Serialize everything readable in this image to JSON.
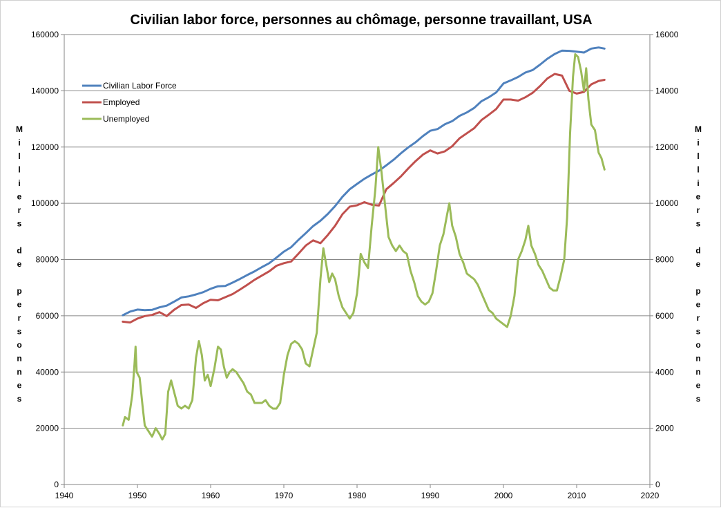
{
  "chart_data": {
    "type": "line",
    "title": "Civilian labor force, personnes au chômage, personne travaillant, USA",
    "ylabel_left": "Milliers de personnes",
    "ylabel_right": "Milliers de personnes",
    "xlim": [
      1940,
      2020
    ],
    "x_ticks": [
      1940,
      1950,
      1960,
      1970,
      1980,
      1990,
      2000,
      2010,
      2020
    ],
    "ylim_left": [
      0,
      160000
    ],
    "y_ticks_left": [
      0,
      20000,
      40000,
      60000,
      80000,
      100000,
      120000,
      140000,
      160000
    ],
    "ylim_right": [
      0,
      16000
    ],
    "y_ticks_right": [
      0,
      2000,
      4000,
      6000,
      8000,
      10000,
      12000,
      14000,
      16000
    ],
    "grid": "horizontal",
    "legend_position": "top-left",
    "series": [
      {
        "name": "Civilian Labor Force",
        "axis": "left",
        "color": "#4f81bd",
        "points": [
          [
            1948.0,
            60200
          ],
          [
            1949.0,
            61500
          ],
          [
            1950.0,
            62200
          ],
          [
            1951.0,
            62000
          ],
          [
            1952.0,
            62100
          ],
          [
            1953.0,
            63000
          ],
          [
            1954.0,
            63600
          ],
          [
            1955.0,
            65000
          ],
          [
            1956.0,
            66500
          ],
          [
            1957.0,
            66900
          ],
          [
            1958.0,
            67600
          ],
          [
            1959.0,
            68400
          ],
          [
            1960.0,
            69600
          ],
          [
            1961.0,
            70500
          ],
          [
            1962.0,
            70600
          ],
          [
            1963.0,
            71800
          ],
          [
            1964.0,
            73100
          ],
          [
            1965.0,
            74500
          ],
          [
            1966.0,
            75800
          ],
          [
            1967.0,
            77300
          ],
          [
            1968.0,
            78700
          ],
          [
            1969.0,
            80700
          ],
          [
            1970.0,
            82800
          ],
          [
            1971.0,
            84400
          ],
          [
            1972.0,
            87000
          ],
          [
            1973.0,
            89400
          ],
          [
            1974.0,
            91900
          ],
          [
            1975.0,
            93800
          ],
          [
            1976.0,
            96200
          ],
          [
            1977.0,
            99000
          ],
          [
            1978.0,
            102300
          ],
          [
            1979.0,
            105000
          ],
          [
            1980.0,
            106900
          ],
          [
            1981.0,
            108700
          ],
          [
            1982.0,
            110200
          ],
          [
            1983.0,
            111600
          ],
          [
            1984.0,
            113500
          ],
          [
            1985.0,
            115500
          ],
          [
            1986.0,
            117800
          ],
          [
            1987.0,
            119900
          ],
          [
            1988.0,
            121700
          ],
          [
            1989.0,
            123900
          ],
          [
            1990.0,
            125800
          ],
          [
            1991.0,
            126400
          ],
          [
            1992.0,
            128100
          ],
          [
            1993.0,
            129200
          ],
          [
            1994.0,
            131100
          ],
          [
            1995.0,
            132300
          ],
          [
            1996.0,
            133900
          ],
          [
            1997.0,
            136300
          ],
          [
            1998.0,
            137700
          ],
          [
            1999.0,
            139400
          ],
          [
            2000.0,
            142600
          ],
          [
            2001.0,
            143700
          ],
          [
            2002.0,
            144900
          ],
          [
            2003.0,
            146500
          ],
          [
            2004.0,
            147400
          ],
          [
            2005.0,
            149300
          ],
          [
            2006.0,
            151400
          ],
          [
            2007.0,
            153100
          ],
          [
            2008.0,
            154300
          ],
          [
            2009.0,
            154200
          ],
          [
            2010.0,
            153900
          ],
          [
            2011.0,
            153600
          ],
          [
            2012.0,
            155000
          ],
          [
            2013.0,
            155400
          ],
          [
            2013.8,
            155000
          ]
        ]
      },
      {
        "name": "Employed",
        "axis": "left",
        "color": "#c0504d",
        "points": [
          [
            1948.0,
            57900
          ],
          [
            1949.0,
            57600
          ],
          [
            1950.0,
            59000
          ],
          [
            1951.0,
            59900
          ],
          [
            1952.0,
            60300
          ],
          [
            1953.0,
            61300
          ],
          [
            1954.0,
            59900
          ],
          [
            1955.0,
            62100
          ],
          [
            1956.0,
            63800
          ],
          [
            1957.0,
            64000
          ],
          [
            1958.0,
            62800
          ],
          [
            1959.0,
            64500
          ],
          [
            1960.0,
            65700
          ],
          [
            1961.0,
            65500
          ],
          [
            1962.0,
            66600
          ],
          [
            1963.0,
            67700
          ],
          [
            1964.0,
            69300
          ],
          [
            1965.0,
            71000
          ],
          [
            1966.0,
            72800
          ],
          [
            1967.0,
            74300
          ],
          [
            1968.0,
            75800
          ],
          [
            1969.0,
            77800
          ],
          [
            1970.0,
            78700
          ],
          [
            1971.0,
            79300
          ],
          [
            1972.0,
            82100
          ],
          [
            1973.0,
            85000
          ],
          [
            1974.0,
            86800
          ],
          [
            1975.0,
            85800
          ],
          [
            1976.0,
            88700
          ],
          [
            1977.0,
            92000
          ],
          [
            1978.0,
            96100
          ],
          [
            1979.0,
            98800
          ],
          [
            1980.0,
            99300
          ],
          [
            1981.0,
            100400
          ],
          [
            1982.0,
            99500
          ],
          [
            1983.0,
            99200
          ],
          [
            1984.0,
            105000
          ],
          [
            1985.0,
            107200
          ],
          [
            1986.0,
            109600
          ],
          [
            1987.0,
            112400
          ],
          [
            1988.0,
            115000
          ],
          [
            1989.0,
            117300
          ],
          [
            1990.0,
            118800
          ],
          [
            1991.0,
            117700
          ],
          [
            1992.0,
            118500
          ],
          [
            1993.0,
            120300
          ],
          [
            1994.0,
            123100
          ],
          [
            1995.0,
            124900
          ],
          [
            1996.0,
            126700
          ],
          [
            1997.0,
            129600
          ],
          [
            1998.0,
            131500
          ],
          [
            1999.0,
            133500
          ],
          [
            2000.0,
            136900
          ],
          [
            2001.0,
            136900
          ],
          [
            2002.0,
            136500
          ],
          [
            2003.0,
            137700
          ],
          [
            2004.0,
            139300
          ],
          [
            2005.0,
            141700
          ],
          [
            2006.0,
            144400
          ],
          [
            2007.0,
            146000
          ],
          [
            2008.0,
            145400
          ],
          [
            2009.0,
            140000
          ],
          [
            2010.0,
            139000
          ],
          [
            2011.0,
            139600
          ],
          [
            2012.0,
            142300
          ],
          [
            2013.0,
            143500
          ],
          [
            2013.8,
            143900
          ]
        ]
      },
      {
        "name": "Unemployed",
        "axis": "right",
        "color": "#9bbb59",
        "points": [
          [
            1948.0,
            2100
          ],
          [
            1948.3,
            2400
          ],
          [
            1948.8,
            2300
          ],
          [
            1949.3,
            3200
          ],
          [
            1949.6,
            4300
          ],
          [
            1949.75,
            4900
          ],
          [
            1949.9,
            4000
          ],
          [
            1950.3,
            3800
          ],
          [
            1950.7,
            2800
          ],
          [
            1951.0,
            2100
          ],
          [
            1951.5,
            1900
          ],
          [
            1952.0,
            1700
          ],
          [
            1952.5,
            2000
          ],
          [
            1953.0,
            1800
          ],
          [
            1953.4,
            1600
          ],
          [
            1953.8,
            1800
          ],
          [
            1954.2,
            3300
          ],
          [
            1954.6,
            3700
          ],
          [
            1955.0,
            3300
          ],
          [
            1955.5,
            2800
          ],
          [
            1956.0,
            2700
          ],
          [
            1956.5,
            2800
          ],
          [
            1957.0,
            2700
          ],
          [
            1957.5,
            3000
          ],
          [
            1958.0,
            4500
          ],
          [
            1958.4,
            5100
          ],
          [
            1958.8,
            4600
          ],
          [
            1959.2,
            3700
          ],
          [
            1959.6,
            3900
          ],
          [
            1960.0,
            3500
          ],
          [
            1960.5,
            4100
          ],
          [
            1961.0,
            4900
          ],
          [
            1961.4,
            4800
          ],
          [
            1961.8,
            4200
          ],
          [
            1962.2,
            3800
          ],
          [
            1962.6,
            4000
          ],
          [
            1963.0,
            4100
          ],
          [
            1963.5,
            4000
          ],
          [
            1964.0,
            3800
          ],
          [
            1964.5,
            3600
          ],
          [
            1965.0,
            3300
          ],
          [
            1965.5,
            3200
          ],
          [
            1966.0,
            2900
          ],
          [
            1966.5,
            2900
          ],
          [
            1967.0,
            2900
          ],
          [
            1967.5,
            3000
          ],
          [
            1968.0,
            2800
          ],
          [
            1968.5,
            2700
          ],
          [
            1969.0,
            2700
          ],
          [
            1969.5,
            2900
          ],
          [
            1970.0,
            3900
          ],
          [
            1970.5,
            4600
          ],
          [
            1971.0,
            5000
          ],
          [
            1971.5,
            5100
          ],
          [
            1972.0,
            5000
          ],
          [
            1972.5,
            4800
          ],
          [
            1973.0,
            4300
          ],
          [
            1973.5,
            4200
          ],
          [
            1974.0,
            4800
          ],
          [
            1974.5,
            5400
          ],
          [
            1975.0,
            7300
          ],
          [
            1975.4,
            8400
          ],
          [
            1975.8,
            7800
          ],
          [
            1976.2,
            7200
          ],
          [
            1976.6,
            7500
          ],
          [
            1977.0,
            7300
          ],
          [
            1977.5,
            6700
          ],
          [
            1978.0,
            6300
          ],
          [
            1978.5,
            6100
          ],
          [
            1979.0,
            5900
          ],
          [
            1979.5,
            6100
          ],
          [
            1980.0,
            6800
          ],
          [
            1980.5,
            8200
          ],
          [
            1981.0,
            7900
          ],
          [
            1981.5,
            7700
          ],
          [
            1982.0,
            9200
          ],
          [
            1982.5,
            10500
          ],
          [
            1982.9,
            12000
          ],
          [
            1983.3,
            11200
          ],
          [
            1983.8,
            10000
          ],
          [
            1984.3,
            8800
          ],
          [
            1984.8,
            8500
          ],
          [
            1985.3,
            8300
          ],
          [
            1985.8,
            8500
          ],
          [
            1986.3,
            8300
          ],
          [
            1986.8,
            8200
          ],
          [
            1987.3,
            7600
          ],
          [
            1987.8,
            7200
          ],
          [
            1988.3,
            6700
          ],
          [
            1988.8,
            6500
          ],
          [
            1989.3,
            6400
          ],
          [
            1989.8,
            6500
          ],
          [
            1990.3,
            6800
          ],
          [
            1990.8,
            7600
          ],
          [
            1991.3,
            8500
          ],
          [
            1991.8,
            8900
          ],
          [
            1992.3,
            9600
          ],
          [
            1992.6,
            10000
          ],
          [
            1993.0,
            9200
          ],
          [
            1993.5,
            8800
          ],
          [
            1994.0,
            8200
          ],
          [
            1994.5,
            7900
          ],
          [
            1995.0,
            7500
          ],
          [
            1995.5,
            7400
          ],
          [
            1996.0,
            7300
          ],
          [
            1996.5,
            7100
          ],
          [
            1997.0,
            6800
          ],
          [
            1997.5,
            6500
          ],
          [
            1998.0,
            6200
          ],
          [
            1998.5,
            6100
          ],
          [
            1999.0,
            5900
          ],
          [
            1999.5,
            5800
          ],
          [
            2000.0,
            5700
          ],
          [
            2000.5,
            5600
          ],
          [
            2001.0,
            6000
          ],
          [
            2001.5,
            6700
          ],
          [
            2002.0,
            8000
          ],
          [
            2002.5,
            8300
          ],
          [
            2003.0,
            8700
          ],
          [
            2003.4,
            9200
          ],
          [
            2003.8,
            8500
          ],
          [
            2004.3,
            8200
          ],
          [
            2004.8,
            7800
          ],
          [
            2005.3,
            7600
          ],
          [
            2005.8,
            7300
          ],
          [
            2006.3,
            7000
          ],
          [
            2006.8,
            6900
          ],
          [
            2007.3,
            6900
          ],
          [
            2007.8,
            7400
          ],
          [
            2008.3,
            8000
          ],
          [
            2008.7,
            9500
          ],
          [
            2009.1,
            12500
          ],
          [
            2009.5,
            14500
          ],
          [
            2009.8,
            15300
          ],
          [
            2010.2,
            15200
          ],
          [
            2010.6,
            14700
          ],
          [
            2011.0,
            14000
          ],
          [
            2011.3,
            14800
          ],
          [
            2011.6,
            13700
          ],
          [
            2012.0,
            12800
          ],
          [
            2012.5,
            12600
          ],
          [
            2013.0,
            11800
          ],
          [
            2013.4,
            11600
          ],
          [
            2013.8,
            11200
          ]
        ]
      }
    ]
  }
}
